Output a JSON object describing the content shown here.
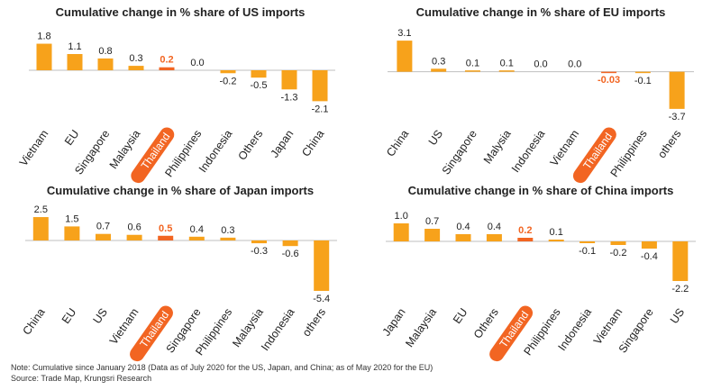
{
  "chart_data": [
    {
      "type": "bar",
      "title": "Cumulative change in % share of US imports",
      "categories": [
        "Vietnam",
        "EU",
        "Singapore",
        "Malaysia",
        "Thailand",
        "Philippines",
        "Indonesia",
        "Others",
        "Japan",
        "China"
      ],
      "values": [
        1.8,
        1.1,
        0.8,
        0.3,
        0.2,
        0.0,
        -0.2,
        -0.5,
        -1.3,
        -2.1
      ],
      "value_labels": [
        "1.8",
        "1.1",
        "0.8",
        "0.3",
        "0.2",
        "0.0",
        "-0.2",
        "-0.5",
        "-1.3",
        "-2.1"
      ],
      "highlight": "Thailand",
      "ylim": [
        -2.2,
        2.2
      ],
      "grid": false
    },
    {
      "type": "bar",
      "title": "Cumulative change in % share of EU imports",
      "categories": [
        "China",
        "US",
        "Singapore",
        "Malysia",
        "Indonesia",
        "Vietnam",
        "Thailand",
        "Philippines",
        "others"
      ],
      "values": [
        3.1,
        0.3,
        0.1,
        0.1,
        0.0,
        0.0,
        -0.03,
        -0.1,
        -3.7
      ],
      "value_labels": [
        "3.1",
        "0.3",
        "0.1",
        "0.1",
        "0.0",
        "0.0",
        "-0.03",
        "-0.1",
        "-3.7"
      ],
      "highlight": "Thailand",
      "ylim": [
        -3.8,
        3.2
      ],
      "grid": false
    },
    {
      "type": "bar",
      "title": "Cumulative change in % share of Japan imports",
      "categories": [
        "China",
        "EU",
        "US",
        "Vietnam",
        "Thailand",
        "Singapore",
        "Philippines",
        "Malaysia",
        "Indonesia",
        "others"
      ],
      "values": [
        2.5,
        1.5,
        0.7,
        0.6,
        0.5,
        0.4,
        0.3,
        -0.3,
        -0.6,
        -5.4
      ],
      "value_labels": [
        "2.5",
        "1.5",
        "0.7",
        "0.6",
        "0.5",
        "0.4",
        "0.3",
        "-0.3",
        "-0.6",
        "-5.4"
      ],
      "highlight": "Thailand",
      "ylim": [
        -5.5,
        2.6
      ],
      "grid": false
    },
    {
      "type": "bar",
      "title": "Cumulative change in % share of China imports",
      "categories": [
        "Japan",
        "Malaysia",
        "EU",
        "Others",
        "Thailand",
        "Philippines",
        "Indonesia",
        "Vietnam",
        "Singapore",
        "US"
      ],
      "values": [
        1.0,
        0.7,
        0.4,
        0.4,
        0.2,
        0.1,
        -0.1,
        -0.2,
        -0.4,
        -2.2
      ],
      "value_labels": [
        "1.0",
        "0.7",
        "0.4",
        "0.4",
        "0.2",
        "0.1",
        "-0.1",
        "-0.2",
        "-0.4",
        "-2.2"
      ],
      "highlight": "Thailand",
      "ylim": [
        -2.3,
        1.1
      ],
      "grid": false
    }
  ],
  "colors": {
    "bar": "#f7a21b",
    "highlight_bar": "#f26522",
    "highlight_label": "#f26522",
    "highlight_pill": "#f26522",
    "text": "#222222"
  },
  "notes": {
    "note": "Note: Cumulative since January 2018 (Data as of July 2020 for the US, Japan, and China; as of May 2020 for the EU)",
    "source": "Source: Trade Map, Krungsri Research"
  }
}
